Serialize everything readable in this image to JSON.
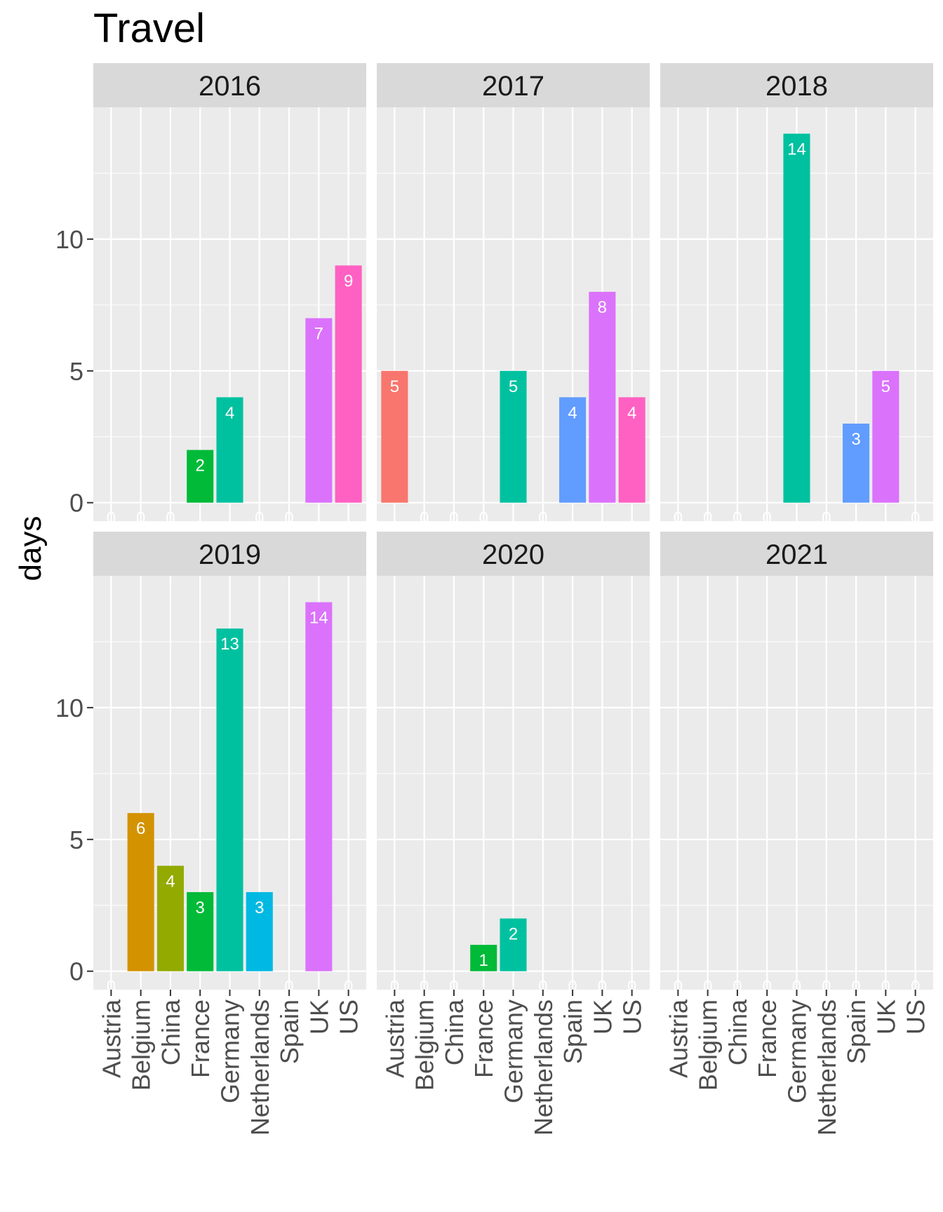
{
  "chart_data": {
    "type": "bar",
    "title": "Travel",
    "ylabel": "days",
    "xlabel": "",
    "ylim": [
      -0.7,
      15
    ],
    "yticks": [
      0,
      5,
      10
    ],
    "grid": true,
    "legend": "none",
    "categories": [
      "Austria",
      "Belgium",
      "China",
      "France",
      "Germany",
      "Netherlands",
      "Spain",
      "UK",
      "US"
    ],
    "colors": {
      "Austria": "#F8766D",
      "Belgium": "#D39200",
      "China": "#93AA00",
      "France": "#00BA38",
      "Germany": "#00C19F",
      "Netherlands": "#00B9E3",
      "Spain": "#619CFF",
      "UK": "#DB72FB",
      "US": "#FF61C3"
    },
    "panels": [
      {
        "name": "2016",
        "values": [
          0,
          0,
          0,
          2,
          4,
          0,
          0,
          7,
          9
        ]
      },
      {
        "name": "2017",
        "values": [
          5,
          0,
          0,
          0,
          5,
          0,
          4,
          8,
          4
        ]
      },
      {
        "name": "2018",
        "values": [
          0,
          0,
          0,
          0,
          14,
          0,
          3,
          5,
          0
        ]
      },
      {
        "name": "2019",
        "values": [
          0,
          6,
          4,
          3,
          13,
          3,
          0,
          14,
          0
        ]
      },
      {
        "name": "2020",
        "values": [
          0,
          0,
          0,
          1,
          2,
          0,
          0,
          0,
          0
        ]
      },
      {
        "name": "2021",
        "values": [
          0,
          0,
          0,
          0,
          0,
          0,
          0,
          0,
          0
        ]
      }
    ]
  }
}
